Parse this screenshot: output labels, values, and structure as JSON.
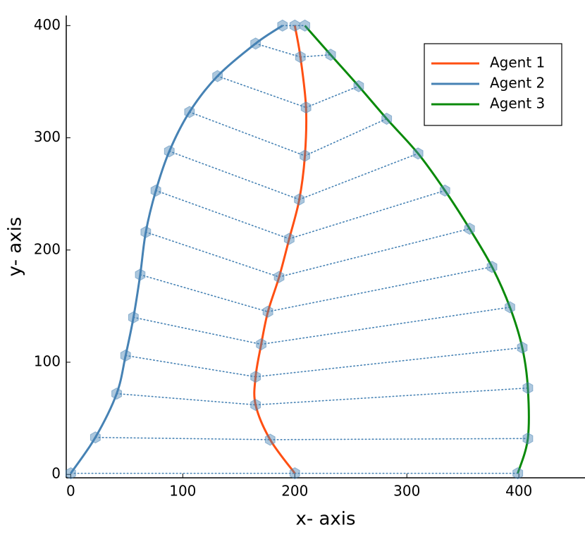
{
  "chart_data": {
    "type": "line",
    "xlabel": "x- axis",
    "ylabel": "y- axis",
    "xlim": [
      -4,
      459
    ],
    "ylim": [
      -3,
      409
    ],
    "xticks": [
      0,
      100,
      200,
      300,
      400
    ],
    "yticks": [
      0,
      100,
      200,
      300,
      400
    ],
    "grid": false,
    "legend": "upper right",
    "marker_color": "#4682b4",
    "connector_color": "#4682b4",
    "series": [
      {
        "name": "Agent 1",
        "color": "#ff4f12",
        "x": [
          200,
          178,
          165,
          165,
          170,
          176,
          186,
          195,
          204,
          209,
          210,
          205,
          200
        ],
        "values": [
          1,
          31,
          62,
          87,
          116,
          145,
          176,
          210,
          245,
          284,
          327,
          372,
          400
        ]
      },
      {
        "name": "Agent 2",
        "color": "#4682b4",
        "x": [
          0,
          22,
          41,
          49,
          56,
          62,
          67,
          76,
          88,
          106,
          131,
          165,
          189
        ],
        "values": [
          1,
          33,
          72,
          106,
          140,
          178,
          216,
          253,
          288,
          323,
          355,
          384,
          400
        ]
      },
      {
        "name": "Agent 3",
        "color": "#0a8a0a",
        "x": [
          399,
          408,
          408,
          403,
          392,
          376,
          356,
          334,
          310,
          282,
          257,
          232,
          209
        ],
        "values": [
          1,
          32,
          77,
          113,
          149,
          185,
          219,
          253,
          286,
          317,
          346,
          374,
          400
        ]
      }
    ]
  }
}
